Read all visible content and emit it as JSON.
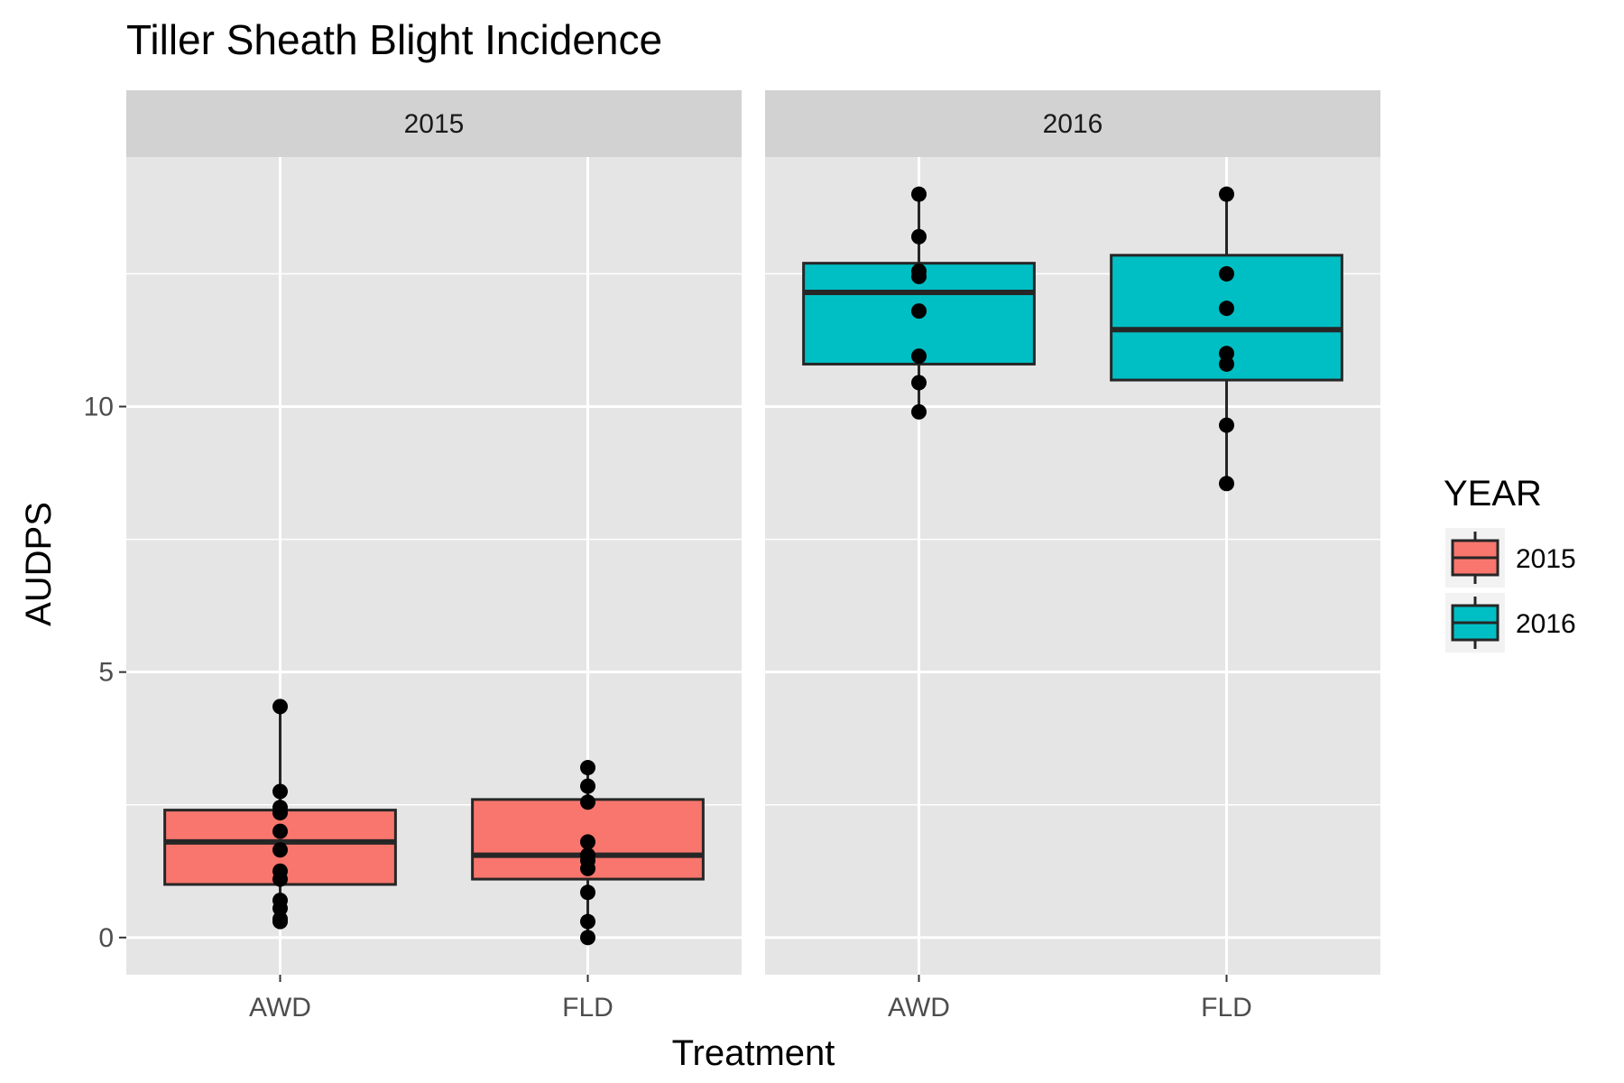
{
  "chart_data": {
    "type": "boxplot",
    "title": "Tiller Sheath Blight Incidence",
    "xlabel": "Treatment",
    "ylabel": "AUDPS",
    "ylim": [
      -0.7,
      14.7
    ],
    "yticks": [
      0,
      5,
      10
    ],
    "categories": [
      "AWD",
      "FLD"
    ],
    "grid": true,
    "legend": {
      "title": "YEAR",
      "placement": "right",
      "entries": [
        {
          "label": "2015",
          "color": "#F8766D"
        },
        {
          "label": "2016",
          "color": "#00BFC4"
        }
      ]
    },
    "facets": [
      {
        "label": "2015",
        "fill": "#F8766D",
        "boxes": [
          {
            "category": "AWD",
            "min": 0.3,
            "q1": 1.0,
            "median": 1.8,
            "q3": 2.4,
            "max": 4.35,
            "points": [
              4.35,
              2.75,
              2.45,
              2.35,
              2.0,
              1.65,
              1.25,
              1.1,
              0.7,
              0.55,
              0.35,
              0.3
            ]
          },
          {
            "category": "FLD",
            "min": 0.0,
            "q1": 1.1,
            "median": 1.55,
            "q3": 2.6,
            "max": 3.2,
            "points": [
              3.2,
              2.85,
              2.55,
              1.8,
              1.55,
              1.45,
              1.3,
              0.85,
              0.3,
              0.0
            ]
          }
        ]
      },
      {
        "label": "2016",
        "fill": "#00BFC4",
        "boxes": [
          {
            "category": "AWD",
            "min": 9.9,
            "q1": 10.8,
            "median": 12.15,
            "q3": 12.7,
            "max": 14.0,
            "points": [
              14.0,
              13.2,
              12.55,
              12.45,
              11.8,
              10.95,
              10.45,
              9.9
            ]
          },
          {
            "category": "FLD",
            "min": 8.55,
            "q1": 10.5,
            "median": 11.45,
            "q3": 12.85,
            "max": 14.0,
            "points": [
              14.0,
              12.5,
              11.85,
              11.0,
              10.8,
              9.65,
              8.55
            ]
          }
        ]
      }
    ]
  },
  "colors": {
    "panel_bg": "#E5E5E5",
    "strip_bg": "#D2D2D2",
    "grid": "#FFFFFF",
    "box_stroke": "#262626",
    "point": "#000000"
  }
}
